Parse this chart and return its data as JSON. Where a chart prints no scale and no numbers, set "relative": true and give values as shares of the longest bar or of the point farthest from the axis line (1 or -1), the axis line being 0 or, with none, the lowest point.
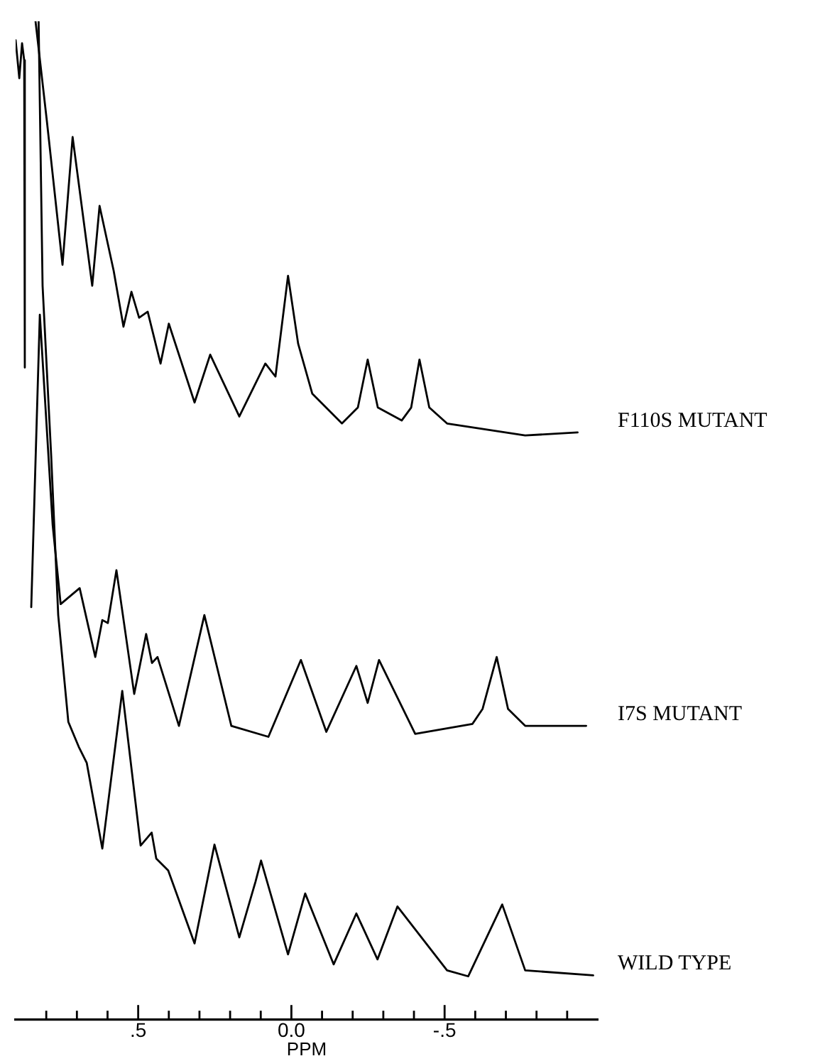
{
  "chart_data": {
    "type": "line",
    "relative": true,
    "xlabel": "PPM",
    "xlim": [
      0.9,
      -1.0
    ],
    "xticks": [
      {
        "value": 0.8,
        "label": null
      },
      {
        "value": 0.7,
        "label": null
      },
      {
        "value": 0.6,
        "label": null
      },
      {
        "value": 0.5,
        "label": ".5"
      },
      {
        "value": 0.4,
        "label": null
      },
      {
        "value": 0.3,
        "label": null
      },
      {
        "value": 0.2,
        "label": null
      },
      {
        "value": 0.1,
        "label": null
      },
      {
        "value": 0,
        "label": "0.0"
      },
      {
        "value": -0.1,
        "label": null
      },
      {
        "value": -0.2,
        "label": null
      },
      {
        "value": -0.3,
        "label": null
      },
      {
        "value": -0.4,
        "label": null
      },
      {
        "value": -0.5,
        "label": "-.5"
      },
      {
        "value": -0.6,
        "label": null
      },
      {
        "value": -0.7,
        "label": null
      },
      {
        "value": -0.8,
        "label": null
      },
      {
        "value": -0.9,
        "label": null
      }
    ],
    "grid": false,
    "legend": false,
    "tick_labels": "x",
    "marker": "none",
    "line_style": "solid",
    "series": [
      {
        "name": "F110S MUTANT",
        "color": "#000000",
        "x": [
          0.9,
          0.888,
          0.879,
          0.872,
          0.87,
          0.85,
          0.835,
          0.798,
          0.747,
          0.714,
          0.65,
          0.626,
          0.58,
          0.548,
          0.522,
          0.497,
          0.469,
          0.427,
          0.4,
          0.316,
          0.265,
          0.17,
          0.085,
          0.052,
          0.011,
          -0.022,
          -0.068,
          -0.165,
          -0.217,
          -0.249,
          -0.282,
          -0.36,
          -0.391,
          -0.418,
          -0.45,
          -0.508,
          -0.763,
          -0.934
        ],
        "values": [
          0.981,
          0.943,
          0.978,
          0.961,
          0.653,
          null,
          1.0,
          0.9,
          0.756,
          0.884,
          0.735,
          0.815,
          0.75,
          0.694,
          0.729,
          0.703,
          0.709,
          0.657,
          0.697,
          0.618,
          0.666,
          0.604,
          0.657,
          0.644,
          0.745,
          0.677,
          0.627,
          0.597,
          0.613,
          0.661,
          0.613,
          0.6,
          0.613,
          0.661,
          0.613,
          0.597,
          0.585,
          0.588
        ]
      },
      {
        "name": "I7S MUTANT",
        "color": "#000000",
        "x": [
          0.849,
          0.821,
          0.779,
          0.753,
          0.691,
          0.64,
          0.617,
          0.599,
          0.571,
          0.513,
          0.474,
          0.455,
          0.437,
          0.367,
          0.284,
          0.196,
          0.075,
          -0.031,
          -0.114,
          -0.212,
          -0.249,
          -0.286,
          -0.404,
          -0.591,
          -0.624,
          -0.67,
          -0.707,
          -0.763,
          -0.962
        ],
        "values": [
          0.413,
          0.706,
          0.495,
          0.416,
          0.432,
          0.363,
          0.4,
          0.397,
          0.45,
          0.326,
          0.386,
          0.357,
          0.363,
          0.294,
          0.405,
          0.294,
          0.283,
          0.36,
          0.288,
          0.354,
          0.317,
          0.36,
          0.286,
          0.296,
          0.311,
          0.363,
          0.311,
          0.294,
          0.294
        ]
      },
      {
        "name": "WILD TYPE",
        "color": "#000000",
        "x": [
          0.825,
          0.812,
          0.784,
          0.761,
          0.728,
          0.694,
          0.668,
          0.617,
          0.552,
          0.492,
          0.456,
          0.441,
          0.402,
          0.316,
          0.251,
          0.17,
          0.117,
          0.099,
          0.011,
          -0.045,
          -0.138,
          -0.212,
          -0.281,
          -0.346,
          -0.508,
          -0.577,
          -0.688,
          -0.763,
          -0.985
        ],
        "values": [
          1.0,
          0.735,
          0.565,
          0.405,
          0.298,
          0.273,
          0.257,
          0.171,
          0.329,
          0.174,
          0.187,
          0.161,
          0.149,
          0.076,
          0.175,
          0.082,
          0.138,
          0.159,
          0.065,
          0.126,
          0.055,
          0.106,
          0.06,
          0.113,
          0.049,
          0.043,
          0.115,
          0.049,
          0.044
        ]
      }
    ]
  }
}
